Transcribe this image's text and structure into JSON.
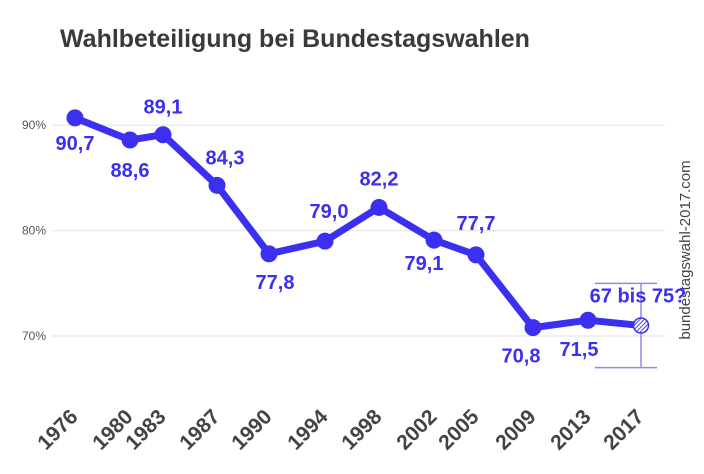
{
  "chart_data": {
    "type": "line",
    "title": "Wahlbeteiligung bei Bundestagswahlen",
    "watermark": "bundestagswahl-2017.com",
    "xlabel": "",
    "ylabel": "",
    "ylim": [
      64.5,
      96
    ],
    "yticks": [
      {
        "value": 70,
        "label": "70%"
      },
      {
        "value": 80,
        "label": "80%"
      },
      {
        "value": 90,
        "label": "90%"
      }
    ],
    "grid": true,
    "colors": {
      "series": "#3b30ef",
      "grid": "#e8e8e8",
      "tick": "#555555",
      "title": "#3a3a3a",
      "error_bar": "#8c8ce8"
    },
    "categories": [
      "1976",
      "1980",
      "1983",
      "1987",
      "1990",
      "1994",
      "1998",
      "2002",
      "2005",
      "2009",
      "2013",
      "2017"
    ],
    "series": [
      {
        "values": [
          90.7,
          88.6,
          89.1,
          84.3,
          77.8,
          79.0,
          82.2,
          79.1,
          77.7,
          70.8,
          71.5,
          71.0
        ],
        "labels": [
          "90,7",
          "88,6",
          "89,1",
          "84,3",
          "77,8",
          "79,0",
          "82,2",
          "79,1",
          "77,7",
          "70,8",
          "71,5",
          "67 bis 75?"
        ]
      }
    ],
    "projection": {
      "year": "2017",
      "range": [
        67,
        75
      ],
      "label": "67 bis 75?"
    }
  }
}
